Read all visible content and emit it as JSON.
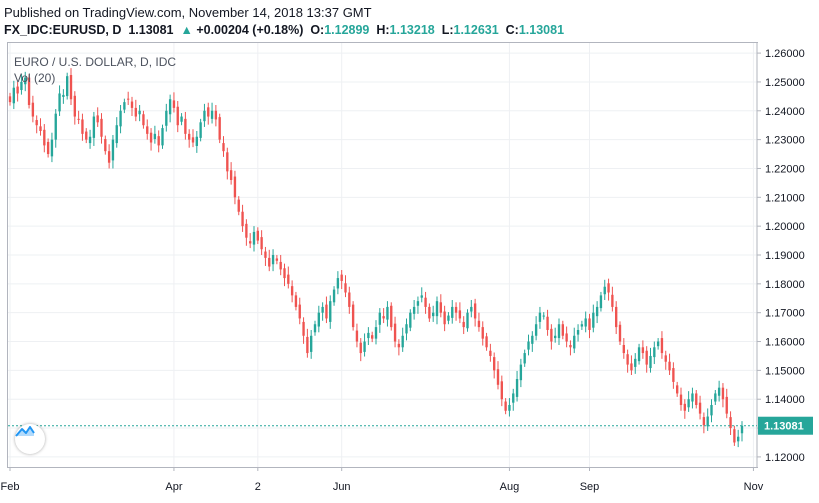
{
  "header": {
    "published": "Published on TradingView.com, November 14, 2018 13:37 GMT",
    "symbol": "FX_IDC:EURUSD, D",
    "last": "1.13081",
    "change": "+0.00204 (+0.18%)",
    "o_label": "O:",
    "o": "1.12899",
    "h_label": "H:",
    "h": "1.13218",
    "l_label": "L:",
    "l": "1.12631",
    "c_label": "C:",
    "c": "1.13081"
  },
  "legend": {
    "title": "EURO / U.S. DOLLAR, D, IDC",
    "vol": "Vol (20)"
  },
  "colors": {
    "up": "#26a69a",
    "down": "#ef5350",
    "price_label_bg": "#26a69a",
    "grid": "#eef0f3"
  },
  "chart_data": {
    "type": "candlestick",
    "title": "EURO / U.S. DOLLAR, D, IDC",
    "ylim": [
      1.1165,
      1.2635
    ],
    "y_ticks": [
      "1.26000",
      "1.25000",
      "1.24000",
      "1.23000",
      "1.22000",
      "1.21000",
      "1.20000",
      "1.19000",
      "1.18000",
      "1.17000",
      "1.16000",
      "1.15000",
      "1.14000",
      "1.13000",
      "1.12000"
    ],
    "x_ticks": [
      {
        "label": "Feb",
        "idx": 0
      },
      {
        "label": "Apr",
        "idx": 43
      },
      {
        "label": "2",
        "idx": 65
      },
      {
        "label": "Jun",
        "idx": 87
      },
      {
        "label": "Aug",
        "idx": 131
      },
      {
        "label": "Sep",
        "idx": 152
      },
      {
        "label": "Nov",
        "idx": 195
      }
    ],
    "last_price": 1.13081,
    "last_price_label": "1.13081",
    "closes": [
      1.243,
      1.248,
      1.246,
      1.25,
      1.2515,
      1.242,
      1.238,
      1.235,
      1.233,
      1.228,
      1.225,
      1.23,
      1.239,
      1.246,
      1.2455,
      1.252,
      1.244,
      1.238,
      1.237,
      1.232,
      1.23,
      1.231,
      1.238,
      1.236,
      1.231,
      1.226,
      1.222,
      1.23,
      1.235,
      1.24,
      1.243,
      1.244,
      1.241,
      1.238,
      1.24,
      1.235,
      1.232,
      1.229,
      1.232,
      1.228,
      1.234,
      1.24,
      1.244,
      1.241,
      1.235,
      1.238,
      1.232,
      1.23,
      1.229,
      1.231,
      1.236,
      1.24,
      1.238,
      1.24,
      1.237,
      1.23,
      1.226,
      1.219,
      1.216,
      1.21,
      1.205,
      1.2,
      1.196,
      1.194,
      1.198,
      1.195,
      1.192,
      1.189,
      1.186,
      1.19,
      1.188,
      1.185,
      1.182,
      1.18,
      1.176,
      1.172,
      1.168,
      1.162,
      1.156,
      1.162,
      1.166,
      1.17,
      1.172,
      1.168,
      1.174,
      1.178,
      1.182,
      1.181,
      1.177,
      1.172,
      1.165,
      1.16,
      1.156,
      1.16,
      1.163,
      1.161,
      1.165,
      1.17,
      1.168,
      1.172,
      1.165,
      1.16,
      1.158,
      1.162,
      1.166,
      1.17,
      1.172,
      1.174,
      1.176,
      1.172,
      1.168,
      1.17,
      1.174,
      1.17,
      1.166,
      1.169,
      1.172,
      1.17,
      1.168,
      1.165,
      1.17,
      1.172,
      1.168,
      1.165,
      1.161,
      1.158,
      1.155,
      1.15,
      1.145,
      1.14,
      1.136,
      1.138,
      1.142,
      1.147,
      1.152,
      1.156,
      1.16,
      1.162,
      1.166,
      1.17,
      1.169,
      1.164,
      1.16,
      1.162,
      1.166,
      1.162,
      1.16,
      1.158,
      1.162,
      1.164,
      1.166,
      1.168,
      1.164,
      1.17,
      1.172,
      1.176,
      1.179,
      1.177,
      1.172,
      1.165,
      1.16,
      1.156,
      1.152,
      1.15,
      1.154,
      1.158,
      1.156,
      1.152,
      1.155,
      1.158,
      1.16,
      1.156,
      1.153,
      1.15,
      1.146,
      1.142,
      1.138,
      1.136,
      1.14,
      1.142,
      1.138,
      1.135,
      1.131,
      1.134,
      1.138,
      1.142,
      1.144,
      1.14,
      1.135,
      1.13,
      1.125,
      1.127,
      1.1308
    ]
  }
}
